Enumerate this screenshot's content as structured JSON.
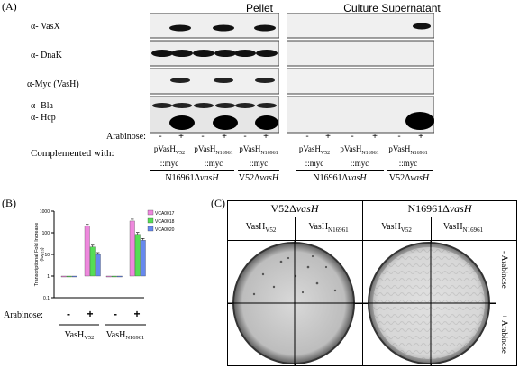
{
  "panelA": {
    "letter": "(A)",
    "headers": [
      "Pellet",
      "Culture Supernatant"
    ],
    "blot_labels": [
      "α- VasX",
      "α- DnaK",
      "α-Myc (VasH)",
      "α- Bla",
      "α- Hcp"
    ],
    "arabinose_label": "Arabinose:",
    "arabinose_signs": [
      "-",
      "+",
      "-",
      "+",
      "-",
      "+"
    ],
    "complemented_label": "Complemented with:",
    "constructs": [
      {
        "name": "pVasH",
        "sub": "V52",
        "tag": "::myc"
      },
      {
        "name": "pVasH",
        "sub": "N16961",
        "tag": "::myc"
      },
      {
        "name": "pVasH",
        "sub": "N16961",
        "tag": "::myc"
      }
    ],
    "strain_left": "N16961Δ",
    "strain_left_gene": "vasH",
    "strain_right": "V52Δ",
    "strain_right_gene": "vasH"
  },
  "panelB": {
    "letter": "(B)",
    "ylabel": "Transcriptional Fold Increase",
    "ylabel2": "(log₁₀)",
    "arabinose_label": "Arabinose:",
    "signs": [
      "-",
      "+",
      "-",
      "+"
    ],
    "group_labels": [
      {
        "name": "VasH",
        "sub": "V52"
      },
      {
        "name": "VasH",
        "sub": "N16961"
      }
    ],
    "tick_labels": [
      "1000",
      "100",
      "10",
      "1",
      "0.1"
    ],
    "colors": [
      "#ee88dd",
      "#55dd55",
      "#6688ee"
    ],
    "chart_data": {
      "type": "bar",
      "categories": [
        "VasH V52 -",
        "VasH V52 +",
        "VasH N16961 -",
        "VasH N16961 +"
      ],
      "series": [
        {
          "name": "VCA0017",
          "values": [
            1,
            200,
            1,
            350
          ]
        },
        {
          "name": "VCA0018",
          "values": [
            1,
            22,
            1,
            85
          ]
        },
        {
          "name": "VCA0020",
          "values": [
            1,
            10,
            1,
            45
          ]
        }
      ],
      "yscale": "log",
      "ylim": [
        0.1,
        1000
      ],
      "legend": "top-right"
    }
  },
  "panelC": {
    "letter": "(C)",
    "strain_left": "V52Δ",
    "strain_left_gene": "vasH",
    "strain_right": "N16961Δ",
    "strain_right_gene": "vasH",
    "col_labels": [
      {
        "name": "VasH",
        "sub": "V52"
      },
      {
        "name": "VasH",
        "sub": "N16961"
      },
      {
        "name": "VasH",
        "sub": "V52"
      },
      {
        "name": "VasH",
        "sub": "N16961"
      }
    ],
    "row_labels": [
      "- Arabinose",
      "+ Arabinose"
    ]
  }
}
